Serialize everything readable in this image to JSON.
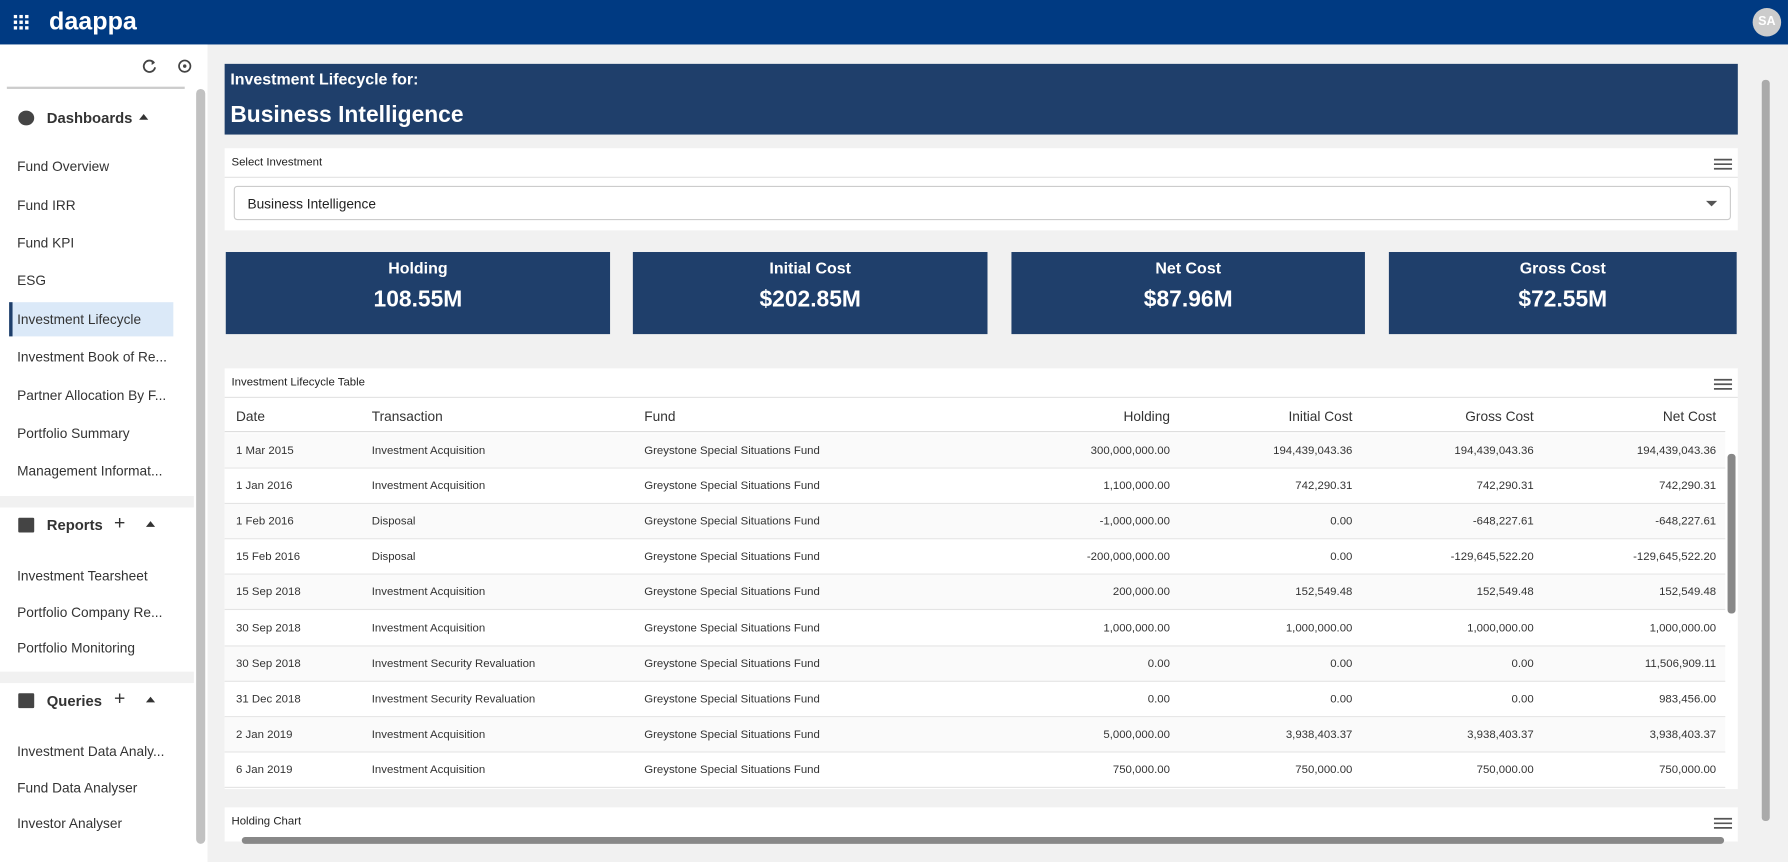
{
  "header": {
    "logo": "daappa",
    "avatar": "SA"
  },
  "sidebar": {
    "sections": [
      {
        "title": "Dashboards",
        "items": [
          "Fund Overview",
          "Fund IRR",
          "Fund KPI",
          "ESG",
          "Investment Lifecycle",
          "Investment Book of Re...",
          "Partner Allocation By F...",
          "Portfolio Summary",
          "Management Informat..."
        ]
      },
      {
        "title": "Reports",
        "items": [
          "Investment Tearsheet",
          "Portfolio Company Re...",
          "Portfolio Monitoring"
        ]
      },
      {
        "title": "Queries",
        "items": [
          "Investment Data Analy...",
          "Fund Data Analyser",
          "Investor Analyser"
        ]
      }
    ]
  },
  "banner": {
    "label": "Investment Lifecycle for:",
    "title": "Business Intelligence"
  },
  "select_panel": {
    "title": "Select Investment",
    "selected": "Business Intelligence"
  },
  "kpis": [
    {
      "label": "Holding",
      "value": "108.55M"
    },
    {
      "label": "Initial Cost",
      "value": "$202.85M"
    },
    {
      "label": "Net Cost",
      "value": "$87.96M"
    },
    {
      "label": "Gross Cost",
      "value": "$72.55M"
    }
  ],
  "table": {
    "title": "Investment Lifecycle Table",
    "columns": [
      "Date",
      "Transaction",
      "Fund",
      "Holding",
      "Initial Cost",
      "Gross Cost",
      "Net Cost"
    ],
    "rows": [
      [
        "1 Mar 2015",
        "Investment Acquisition",
        "Greystone Special Situations Fund",
        "300,000,000.00",
        "194,439,043.36",
        "194,439,043.36",
        "194,439,043.36"
      ],
      [
        "1 Jan 2016",
        "Investment Acquisition",
        "Greystone Special Situations Fund",
        "1,100,000.00",
        "742,290.31",
        "742,290.31",
        "742,290.31"
      ],
      [
        "1 Feb 2016",
        "Disposal",
        "Greystone Special Situations Fund",
        "-1,000,000.00",
        "0.00",
        "-648,227.61",
        "-648,227.61"
      ],
      [
        "15 Feb 2016",
        "Disposal",
        "Greystone Special Situations Fund",
        "-200,000,000.00",
        "0.00",
        "-129,645,522.20",
        "-129,645,522.20"
      ],
      [
        "15 Sep 2018",
        "Investment Acquisition",
        "Greystone Special Situations Fund",
        "200,000.00",
        "152,549.48",
        "152,549.48",
        "152,549.48"
      ],
      [
        "30 Sep 2018",
        "Investment Acquisition",
        "Greystone Special Situations Fund",
        "1,000,000.00",
        "1,000,000.00",
        "1,000,000.00",
        "1,000,000.00"
      ],
      [
        "30 Sep 2018",
        "Investment Security Revaluation",
        "Greystone Special Situations Fund",
        "0.00",
        "0.00",
        "0.00",
        "11,506,909.11"
      ],
      [
        "31 Dec 2018",
        "Investment Security Revaluation",
        "Greystone Special Situations Fund",
        "0.00",
        "0.00",
        "0.00",
        "983,456.00"
      ],
      [
        "2 Jan 2019",
        "Investment Acquisition",
        "Greystone Special Situations Fund",
        "5,000,000.00",
        "3,938,403.37",
        "3,938,403.37",
        "3,938,403.37"
      ],
      [
        "6 Jan 2019",
        "Investment Acquisition",
        "Greystone Special Situations Fund",
        "750,000.00",
        "750,000.00",
        "750,000.00",
        "750,000.00"
      ]
    ]
  },
  "chart_panel": {
    "title": "Holding Chart"
  }
}
